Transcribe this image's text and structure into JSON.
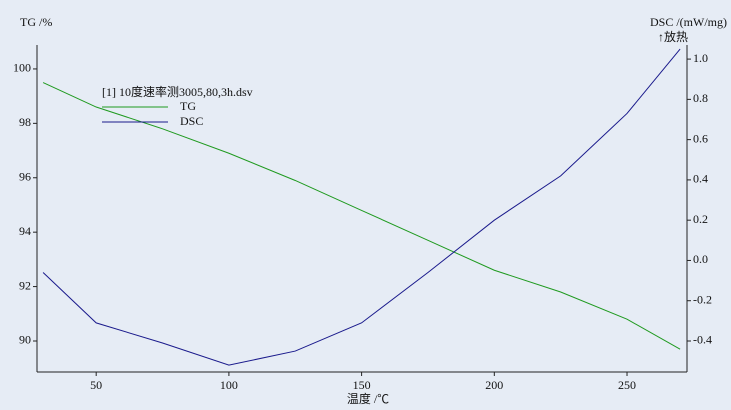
{
  "chart_data": {
    "type": "line",
    "y_label": "TG /%",
    "y2_label": "DSC /(mW/mg)",
    "y2_note": "↑放热",
    "x_label": "温度 /℃",
    "legend_title": "[1] 10度速率测3005,80,3h.dsv",
    "x": [
      30,
      50,
      75,
      100,
      125,
      150,
      175,
      200,
      225,
      250,
      270
    ],
    "series": [
      {
        "name": "TG",
        "color": "#1f9a1f",
        "values": [
          99.5,
          98.6,
          97.8,
          96.9,
          95.9,
          94.8,
          93.7,
          92.6,
          91.8,
          90.8,
          89.7
        ]
      },
      {
        "name": "DSC",
        "color": "#1a1a8c",
        "axis": "y2",
        "values": [
          -0.06,
          -0.31,
          -0.41,
          -0.52,
          -0.45,
          -0.31,
          -0.06,
          0.2,
          0.42,
          0.73,
          1.05
        ]
      }
    ],
    "xlim": [
      27.7,
      272.6
    ],
    "xticks": [
      50,
      100,
      150,
      200,
      250
    ],
    "ylim": [
      88.86,
      100.88
    ],
    "yticks": [
      90,
      92,
      94,
      96,
      98,
      100
    ],
    "y2lim": [
      -0.554,
      1.07
    ],
    "y2ticks": [
      {
        "value": -0.4,
        "label": "-0.4"
      },
      -0.2,
      {
        "value": 0,
        "label": "0.0"
      },
      0.2,
      0.4,
      0.6,
      0.8,
      {
        "value": 1,
        "label": "1.0"
      }
    ]
  }
}
